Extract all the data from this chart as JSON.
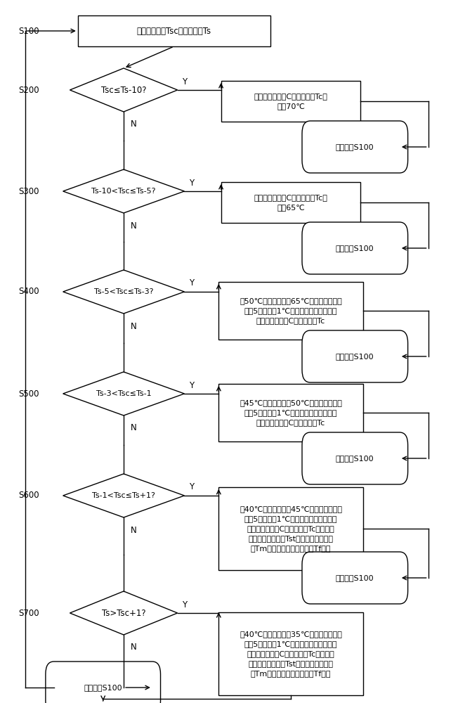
{
  "bg_color": "#ffffff",
  "s100_label": "获取室内温度Tsc和设定温度Ts",
  "s200_label": "Tsc≤Ts-10?",
  "a200_label": "三通恒温阀出口C的控制温度Tc调\n整为70℃",
  "r200_label": "返回步骤S100",
  "s300_label": "Ts-10<Tsc≤Ts-5?",
  "a300_label": "三通恒温阀出口C的控制温度Tc调\n整为65℃",
  "r300_label": "返回步骤S100",
  "s400_label": "Ts-5<Tsc≤Ts-3?",
  "a400_label": "以50℃为基础值，以65℃为升温上限，按\n照每5分钟提高1℃的升温速度，逐步调高\n三通恒温阀出口C的控制温度Tc",
  "r400_label": "返回步骤S100",
  "s500_label": "Ts-3<Tsc≤Ts-1",
  "a500_label": "以45℃为基础值，以50℃为升温上限，按\n照每5分钟提高1℃的升温速度，逐步调高\n三通恒温阀出口C的控制温度Tc",
  "r500_label": "返回步骤S100",
  "s600_label": "Ts-1<Tsc≤Ts+1?",
  "a600_label": "以40℃为基础值，以45℃为升温上限，按\n照每5分钟提高1℃的升温速度，逐步调高\n三通恒温阀出口C的控制温度Tc；同步调\n整压缩机停机温度Tst，使中温容积器水\n温Tm与三通恒温阀出口水温Tf相等",
  "r600_label": "返回步骤S100",
  "s700_label": "Ts>Tsc+1?",
  "a700_label": "以40℃为基础值，以35℃为控温下限，按\n照每5分钟降低1℃的降温速度，逐步调低\n三通恒温阀出口C的控制温度Tc；同步调\n整压缩机停机温度Tst，使中温容积器水\n温Tm与三通恒温阀出口水温Tf相等",
  "r700_label": "返回步骤S100"
}
